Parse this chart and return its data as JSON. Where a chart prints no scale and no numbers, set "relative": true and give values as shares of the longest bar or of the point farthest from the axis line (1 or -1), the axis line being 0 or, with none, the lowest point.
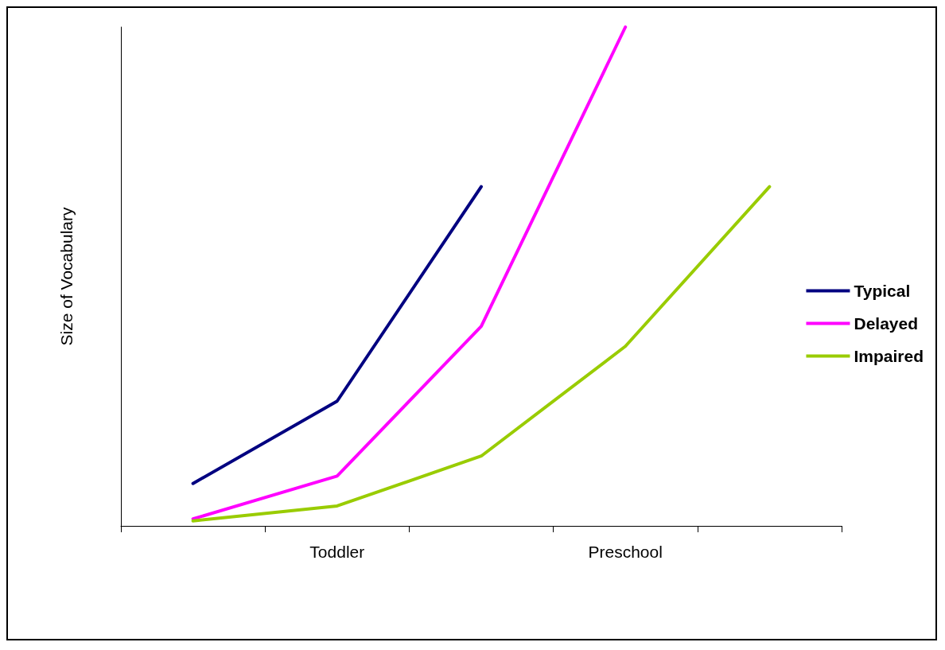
{
  "chart_data": {
    "type": "line",
    "relative": true,
    "ylabel": "Size of Vocabulary",
    "categories": [
      null,
      "Toddler",
      null,
      "Preschool",
      null
    ],
    "series": [
      {
        "name": "Typical",
        "color": "#000080",
        "values": [
          0.085,
          0.25,
          0.68,
          null,
          null
        ]
      },
      {
        "name": "Delayed",
        "color": "#ff00ff",
        "values": [
          0.014,
          0.1,
          0.4,
          1,
          null
        ]
      },
      {
        "name": "Impaired",
        "color": "#99cc00",
        "values": [
          0.01,
          0.04,
          0.14,
          0.36,
          0.68
        ]
      }
    ],
    "legend": "right",
    "grid": false,
    "marker": "none",
    "line_style": "solid"
  }
}
